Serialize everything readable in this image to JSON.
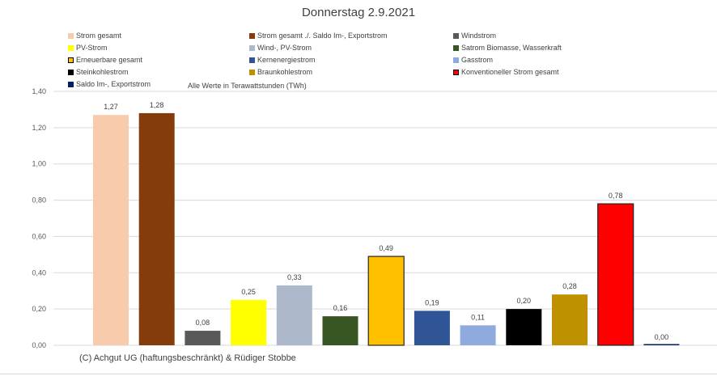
{
  "chart_data": {
    "type": "bar",
    "title": "Donnerstag 2.9.2021",
    "subtitle": "Alle Werte in Terawattstunden (TWh)",
    "xlabel": "",
    "ylabel": "",
    "ylim": [
      0,
      1.4
    ],
    "y_ticks": [
      "0,00",
      "0,20",
      "0,40",
      "0,60",
      "0,80",
      "1,00",
      "1,20",
      "1,40"
    ],
    "y_tick_values": [
      0,
      0.2,
      0.4,
      0.6,
      0.8,
      1.0,
      1.2,
      1.4
    ],
    "grid": true,
    "legend_position": "top",
    "categories": [
      "Strom gesamt",
      "Strom gesamt ./. Saldo Im-, Exportstrom",
      "Windstrom",
      "PV-Strom",
      "Wind-, PV-Strom",
      "Satrom Biomasse, Wasserkraft",
      "Erneuerbare gesamt",
      "Kernenergiestrom",
      "Gasstrom",
      "Steinkohlestrom",
      "Braunkohlestrom",
      "Konventioneller Strom gesamt",
      "Saldo Im-, Exportstrom"
    ],
    "values": [
      1.27,
      1.28,
      0.08,
      0.25,
      0.33,
      0.16,
      0.49,
      0.19,
      0.11,
      0.2,
      0.28,
      0.78,
      0.0
    ],
    "data_labels": [
      "1,27",
      "1,28",
      "0,08",
      "0,25",
      "0,33",
      "0,16",
      "0,49",
      "0,19",
      "0,11",
      "0,20",
      "0,28",
      "0,78",
      "0,00"
    ],
    "colors": [
      "#f8cbad",
      "#843c0c",
      "#595959",
      "#ffff00",
      "#adb9ca",
      "#375623",
      "#ffc000",
      "#2f5597",
      "#8faadc",
      "#000000",
      "#bf9000",
      "#ff0000",
      "#002060"
    ],
    "outlined": [
      false,
      false,
      false,
      false,
      false,
      false,
      true,
      false,
      false,
      false,
      false,
      true,
      false
    ]
  },
  "legend": [
    {
      "label": "Strom gesamt",
      "color": "#f8cbad"
    },
    {
      "label": "Strom gesamt ./. Saldo Im-, Exportstrom",
      "color": "#843c0c"
    },
    {
      "label": "Windstrom",
      "color": "#595959"
    },
    {
      "label": "PV-Strom",
      "color": "#ffff00"
    },
    {
      "label": "Wind-, PV-Strom",
      "color": "#adb9ca"
    },
    {
      "label": "Satrom Biomasse, Wasserkraft",
      "color": "#375623"
    },
    {
      "label": "Erneuerbare gesamt",
      "color": "#ffc000"
    },
    {
      "label": "Kernenergiestrom",
      "color": "#2f5597"
    },
    {
      "label": "Gasstrom",
      "color": "#8faadc"
    },
    {
      "label": "Steinkohlestrom",
      "color": "#000000"
    },
    {
      "label": "Braunkohlestrom",
      "color": "#bf9000"
    },
    {
      "label": "Konventioneller Strom gesamt",
      "color": "#ff0000"
    },
    {
      "label": "Saldo Im-, Exportstrom",
      "color": "#002060"
    }
  ],
  "footer": {
    "credit": "(C) Achgut UG (haftungsbeschränkt) & Rüdiger Stobbe"
  }
}
